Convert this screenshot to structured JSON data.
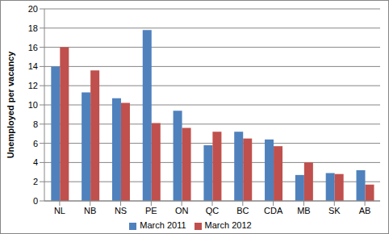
{
  "chart_data": {
    "type": "bar",
    "y_label": "Unemployed per vacancy",
    "categories": [
      "NL",
      "NB",
      "NS",
      "PE",
      "ON",
      "QC",
      "BC",
      "CDA",
      "MB",
      "SK",
      "AB"
    ],
    "series": [
      {
        "name": "March 2011",
        "color": "#4f81bd",
        "values": [
          14,
          11.3,
          10.7,
          17.8,
          9.4,
          5.8,
          7.2,
          6.4,
          2.7,
          2.9,
          3.2
        ]
      },
      {
        "name": "March 2012",
        "color": "#c0504d",
        "values": [
          16,
          13.6,
          10.2,
          8.1,
          7.6,
          7.2,
          6.5,
          5.7,
          4.0,
          2.8,
          1.7
        ]
      }
    ],
    "ylim": [
      0,
      20
    ],
    "yticks": [
      0,
      2,
      4,
      6,
      8,
      10,
      12,
      14,
      16,
      18,
      20
    ],
    "grid": true,
    "legend": "bottom"
  }
}
